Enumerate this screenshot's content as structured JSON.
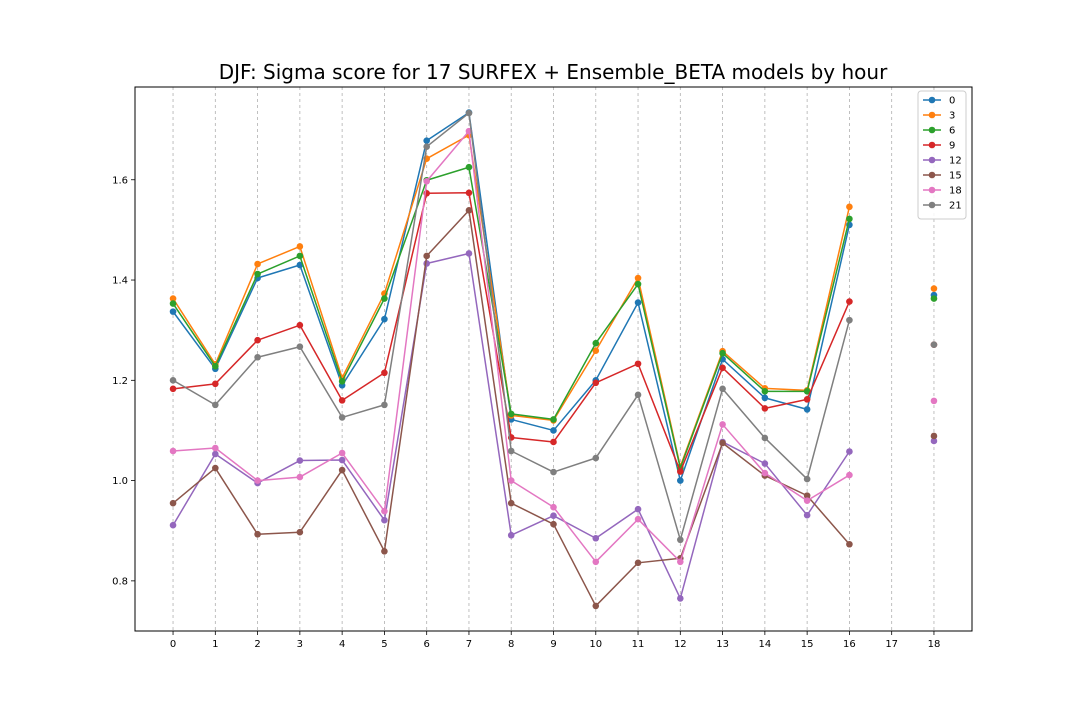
{
  "chart_data": {
    "type": "line",
    "title": "DJF: Sigma score for 17 SURFEX + Ensemble_BETA models by hour",
    "xlabel": "",
    "ylabel": "",
    "x": [
      0,
      1,
      2,
      3,
      4,
      5,
      6,
      7,
      8,
      9,
      10,
      11,
      12,
      13,
      14,
      15,
      16,
      17,
      18
    ],
    "xlim": [
      -0.9,
      18.9
    ],
    "ylim": [
      0.7,
      1.785
    ],
    "xticks": [
      "0",
      "1",
      "2",
      "3",
      "4",
      "5",
      "6",
      "7",
      "8",
      "9",
      "10",
      "11",
      "12",
      "13",
      "14",
      "15",
      "16",
      "17",
      "18"
    ],
    "yticks": [
      "0.8",
      "1.0",
      "1.2",
      "1.4",
      "1.6"
    ],
    "ytick_values": [
      0.8,
      1.0,
      1.2,
      1.4,
      1.6
    ],
    "grid": "vertical dashed",
    "legend_position": "top-right",
    "series": [
      {
        "name": "0",
        "color": "#1f77b4",
        "values": [
          1.337,
          1.223,
          1.404,
          1.43,
          1.19,
          1.322,
          1.678,
          1.734,
          1.122,
          1.1,
          1.2,
          1.355,
          1.0,
          1.242,
          1.165,
          1.142,
          1.51,
          null,
          1.37
        ]
      },
      {
        "name": "3",
        "color": "#ff7f0e",
        "values": [
          1.363,
          1.232,
          1.432,
          1.467,
          1.205,
          1.373,
          1.642,
          1.689,
          1.13,
          1.12,
          1.259,
          1.404,
          1.028,
          1.258,
          1.184,
          1.18,
          1.546,
          null,
          1.383
        ]
      },
      {
        "name": "6",
        "color": "#2ca02c",
        "values": [
          1.353,
          1.228,
          1.412,
          1.448,
          1.198,
          1.363,
          1.599,
          1.625,
          1.133,
          1.122,
          1.274,
          1.392,
          1.025,
          1.254,
          1.178,
          1.178,
          1.522,
          null,
          1.363
        ]
      },
      {
        "name": "9",
        "color": "#d62728",
        "values": [
          1.183,
          1.193,
          1.28,
          1.31,
          1.16,
          1.215,
          1.573,
          1.574,
          1.086,
          1.077,
          1.195,
          1.233,
          1.018,
          1.225,
          1.144,
          1.162,
          1.357,
          null,
          1.271
        ]
      },
      {
        "name": "12",
        "color": "#9467bd",
        "values": [
          0.911,
          1.053,
          0.995,
          1.04,
          1.041,
          0.921,
          1.433,
          1.453,
          0.891,
          0.93,
          0.885,
          0.943,
          0.765,
          1.077,
          1.034,
          0.931,
          1.058,
          null,
          1.079
        ]
      },
      {
        "name": "15",
        "color": "#8c564b",
        "values": [
          0.955,
          1.025,
          0.893,
          0.897,
          1.021,
          0.859,
          1.448,
          1.539,
          0.955,
          0.913,
          0.75,
          0.836,
          0.845,
          1.075,
          1.01,
          0.97,
          0.873,
          null,
          1.089
        ]
      },
      {
        "name": "18",
        "color": "#e377c2",
        "values": [
          1.059,
          1.065,
          1.0,
          1.007,
          1.055,
          0.939,
          1.597,
          1.697,
          1.0,
          0.947,
          0.838,
          0.923,
          0.838,
          1.112,
          1.015,
          0.96,
          1.011,
          null,
          1.159
        ]
      },
      {
        "name": "21",
        "color": "#7f7f7f",
        "values": [
          1.2,
          1.151,
          1.246,
          1.267,
          1.126,
          1.151,
          1.666,
          1.733,
          1.059,
          1.017,
          1.045,
          1.171,
          0.882,
          1.183,
          1.085,
          1.003,
          1.32,
          null,
          1.271
        ]
      }
    ]
  }
}
